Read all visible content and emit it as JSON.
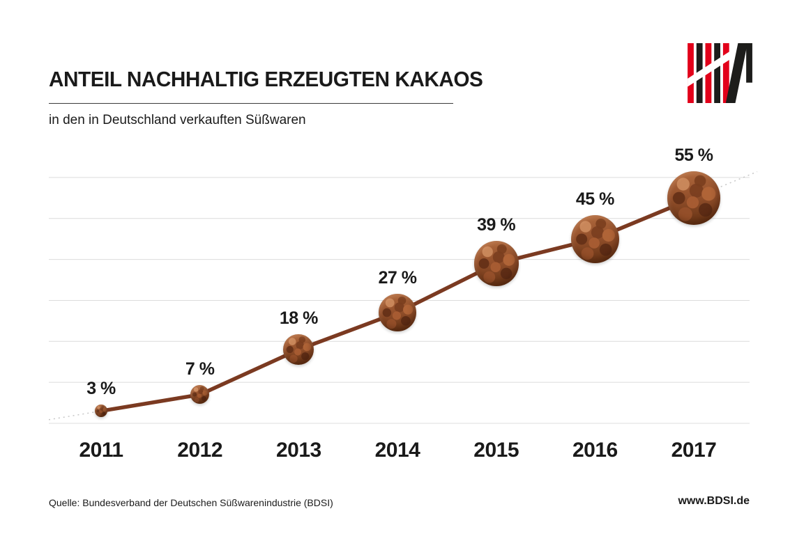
{
  "header": {
    "title": "ANTEIL NACHHALTIG ERZEUGTEN KAKAOS",
    "subtitle": "in den in Deutschland verkauften Süßwaren"
  },
  "logo": {
    "label": "BDSI",
    "red": "#e2001a",
    "black": "#1d1d1b"
  },
  "chart_data": {
    "type": "line",
    "categories": [
      "2011",
      "2012",
      "2013",
      "2014",
      "2015",
      "2016",
      "2017"
    ],
    "values": [
      3,
      7,
      18,
      27,
      39,
      45,
      55
    ],
    "labels": [
      "3 %",
      "7 %",
      "18 %",
      "27 %",
      "39 %",
      "45 %",
      "55 %"
    ],
    "title": "ANTEIL NACHHALTIG ERZEUGTEN KAKAOS",
    "subtitle": "in den in Deutschland verkauften Süßwaren",
    "xlabel": "",
    "ylabel": "",
    "ylim": [
      0,
      60
    ],
    "gridlines": [
      0,
      10,
      20,
      30,
      40,
      50,
      60
    ],
    "grid": true,
    "legend": "none",
    "line_color": "#7b3a21",
    "marker_style": "cocoa-bean-photo-circle"
  },
  "footer": {
    "source": "Quelle: Bundesverband der Deutschen Süßwarenindustrie (BDSI)",
    "website": "www.BDSI.de"
  }
}
